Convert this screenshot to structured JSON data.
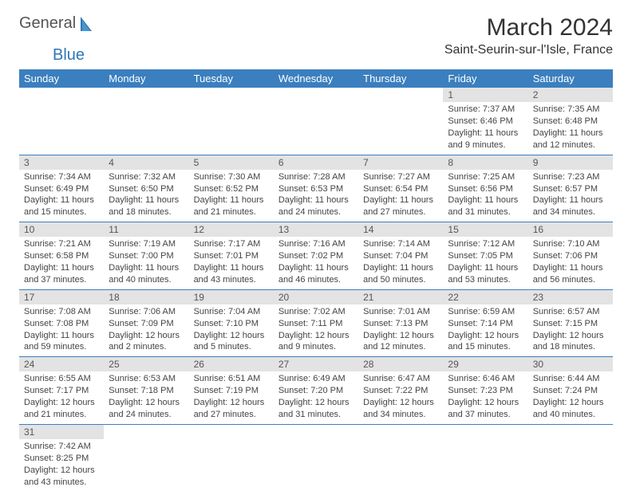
{
  "logo": {
    "text1": "General",
    "text2": "Blue"
  },
  "title": "March 2024",
  "location": "Saint-Seurin-sur-l'Isle, France",
  "colors": {
    "header_bg": "#3b7fbf",
    "header_fg": "#ffffff",
    "daynum_bg": "#e3e3e3",
    "border": "#3b7fbf",
    "logo_gray": "#545454",
    "logo_blue": "#2f77b6"
  },
  "weekdays": [
    "Sunday",
    "Monday",
    "Tuesday",
    "Wednesday",
    "Thursday",
    "Friday",
    "Saturday"
  ],
  "first_weekday_index": 5,
  "days": [
    {
      "n": 1,
      "sunrise": "7:37 AM",
      "sunset": "6:46 PM",
      "daylight": "11 hours and 9 minutes."
    },
    {
      "n": 2,
      "sunrise": "7:35 AM",
      "sunset": "6:48 PM",
      "daylight": "11 hours and 12 minutes."
    },
    {
      "n": 3,
      "sunrise": "7:34 AM",
      "sunset": "6:49 PM",
      "daylight": "11 hours and 15 minutes."
    },
    {
      "n": 4,
      "sunrise": "7:32 AM",
      "sunset": "6:50 PM",
      "daylight": "11 hours and 18 minutes."
    },
    {
      "n": 5,
      "sunrise": "7:30 AM",
      "sunset": "6:52 PM",
      "daylight": "11 hours and 21 minutes."
    },
    {
      "n": 6,
      "sunrise": "7:28 AM",
      "sunset": "6:53 PM",
      "daylight": "11 hours and 24 minutes."
    },
    {
      "n": 7,
      "sunrise": "7:27 AM",
      "sunset": "6:54 PM",
      "daylight": "11 hours and 27 minutes."
    },
    {
      "n": 8,
      "sunrise": "7:25 AM",
      "sunset": "6:56 PM",
      "daylight": "11 hours and 31 minutes."
    },
    {
      "n": 9,
      "sunrise": "7:23 AM",
      "sunset": "6:57 PM",
      "daylight": "11 hours and 34 minutes."
    },
    {
      "n": 10,
      "sunrise": "7:21 AM",
      "sunset": "6:58 PM",
      "daylight": "11 hours and 37 minutes."
    },
    {
      "n": 11,
      "sunrise": "7:19 AM",
      "sunset": "7:00 PM",
      "daylight": "11 hours and 40 minutes."
    },
    {
      "n": 12,
      "sunrise": "7:17 AM",
      "sunset": "7:01 PM",
      "daylight": "11 hours and 43 minutes."
    },
    {
      "n": 13,
      "sunrise": "7:16 AM",
      "sunset": "7:02 PM",
      "daylight": "11 hours and 46 minutes."
    },
    {
      "n": 14,
      "sunrise": "7:14 AM",
      "sunset": "7:04 PM",
      "daylight": "11 hours and 50 minutes."
    },
    {
      "n": 15,
      "sunrise": "7:12 AM",
      "sunset": "7:05 PM",
      "daylight": "11 hours and 53 minutes."
    },
    {
      "n": 16,
      "sunrise": "7:10 AM",
      "sunset": "7:06 PM",
      "daylight": "11 hours and 56 minutes."
    },
    {
      "n": 17,
      "sunrise": "7:08 AM",
      "sunset": "7:08 PM",
      "daylight": "11 hours and 59 minutes."
    },
    {
      "n": 18,
      "sunrise": "7:06 AM",
      "sunset": "7:09 PM",
      "daylight": "12 hours and 2 minutes."
    },
    {
      "n": 19,
      "sunrise": "7:04 AM",
      "sunset": "7:10 PM",
      "daylight": "12 hours and 5 minutes."
    },
    {
      "n": 20,
      "sunrise": "7:02 AM",
      "sunset": "7:11 PM",
      "daylight": "12 hours and 9 minutes."
    },
    {
      "n": 21,
      "sunrise": "7:01 AM",
      "sunset": "7:13 PM",
      "daylight": "12 hours and 12 minutes."
    },
    {
      "n": 22,
      "sunrise": "6:59 AM",
      "sunset": "7:14 PM",
      "daylight": "12 hours and 15 minutes."
    },
    {
      "n": 23,
      "sunrise": "6:57 AM",
      "sunset": "7:15 PM",
      "daylight": "12 hours and 18 minutes."
    },
    {
      "n": 24,
      "sunrise": "6:55 AM",
      "sunset": "7:17 PM",
      "daylight": "12 hours and 21 minutes."
    },
    {
      "n": 25,
      "sunrise": "6:53 AM",
      "sunset": "7:18 PM",
      "daylight": "12 hours and 24 minutes."
    },
    {
      "n": 26,
      "sunrise": "6:51 AM",
      "sunset": "7:19 PM",
      "daylight": "12 hours and 27 minutes."
    },
    {
      "n": 27,
      "sunrise": "6:49 AM",
      "sunset": "7:20 PM",
      "daylight": "12 hours and 31 minutes."
    },
    {
      "n": 28,
      "sunrise": "6:47 AM",
      "sunset": "7:22 PM",
      "daylight": "12 hours and 34 minutes."
    },
    {
      "n": 29,
      "sunrise": "6:46 AM",
      "sunset": "7:23 PM",
      "daylight": "12 hours and 37 minutes."
    },
    {
      "n": 30,
      "sunrise": "6:44 AM",
      "sunset": "7:24 PM",
      "daylight": "12 hours and 40 minutes."
    },
    {
      "n": 31,
      "sunrise": "7:42 AM",
      "sunset": "8:25 PM",
      "daylight": "12 hours and 43 minutes."
    }
  ],
  "labels": {
    "sunrise": "Sunrise:",
    "sunset": "Sunset:",
    "daylight": "Daylight:"
  }
}
